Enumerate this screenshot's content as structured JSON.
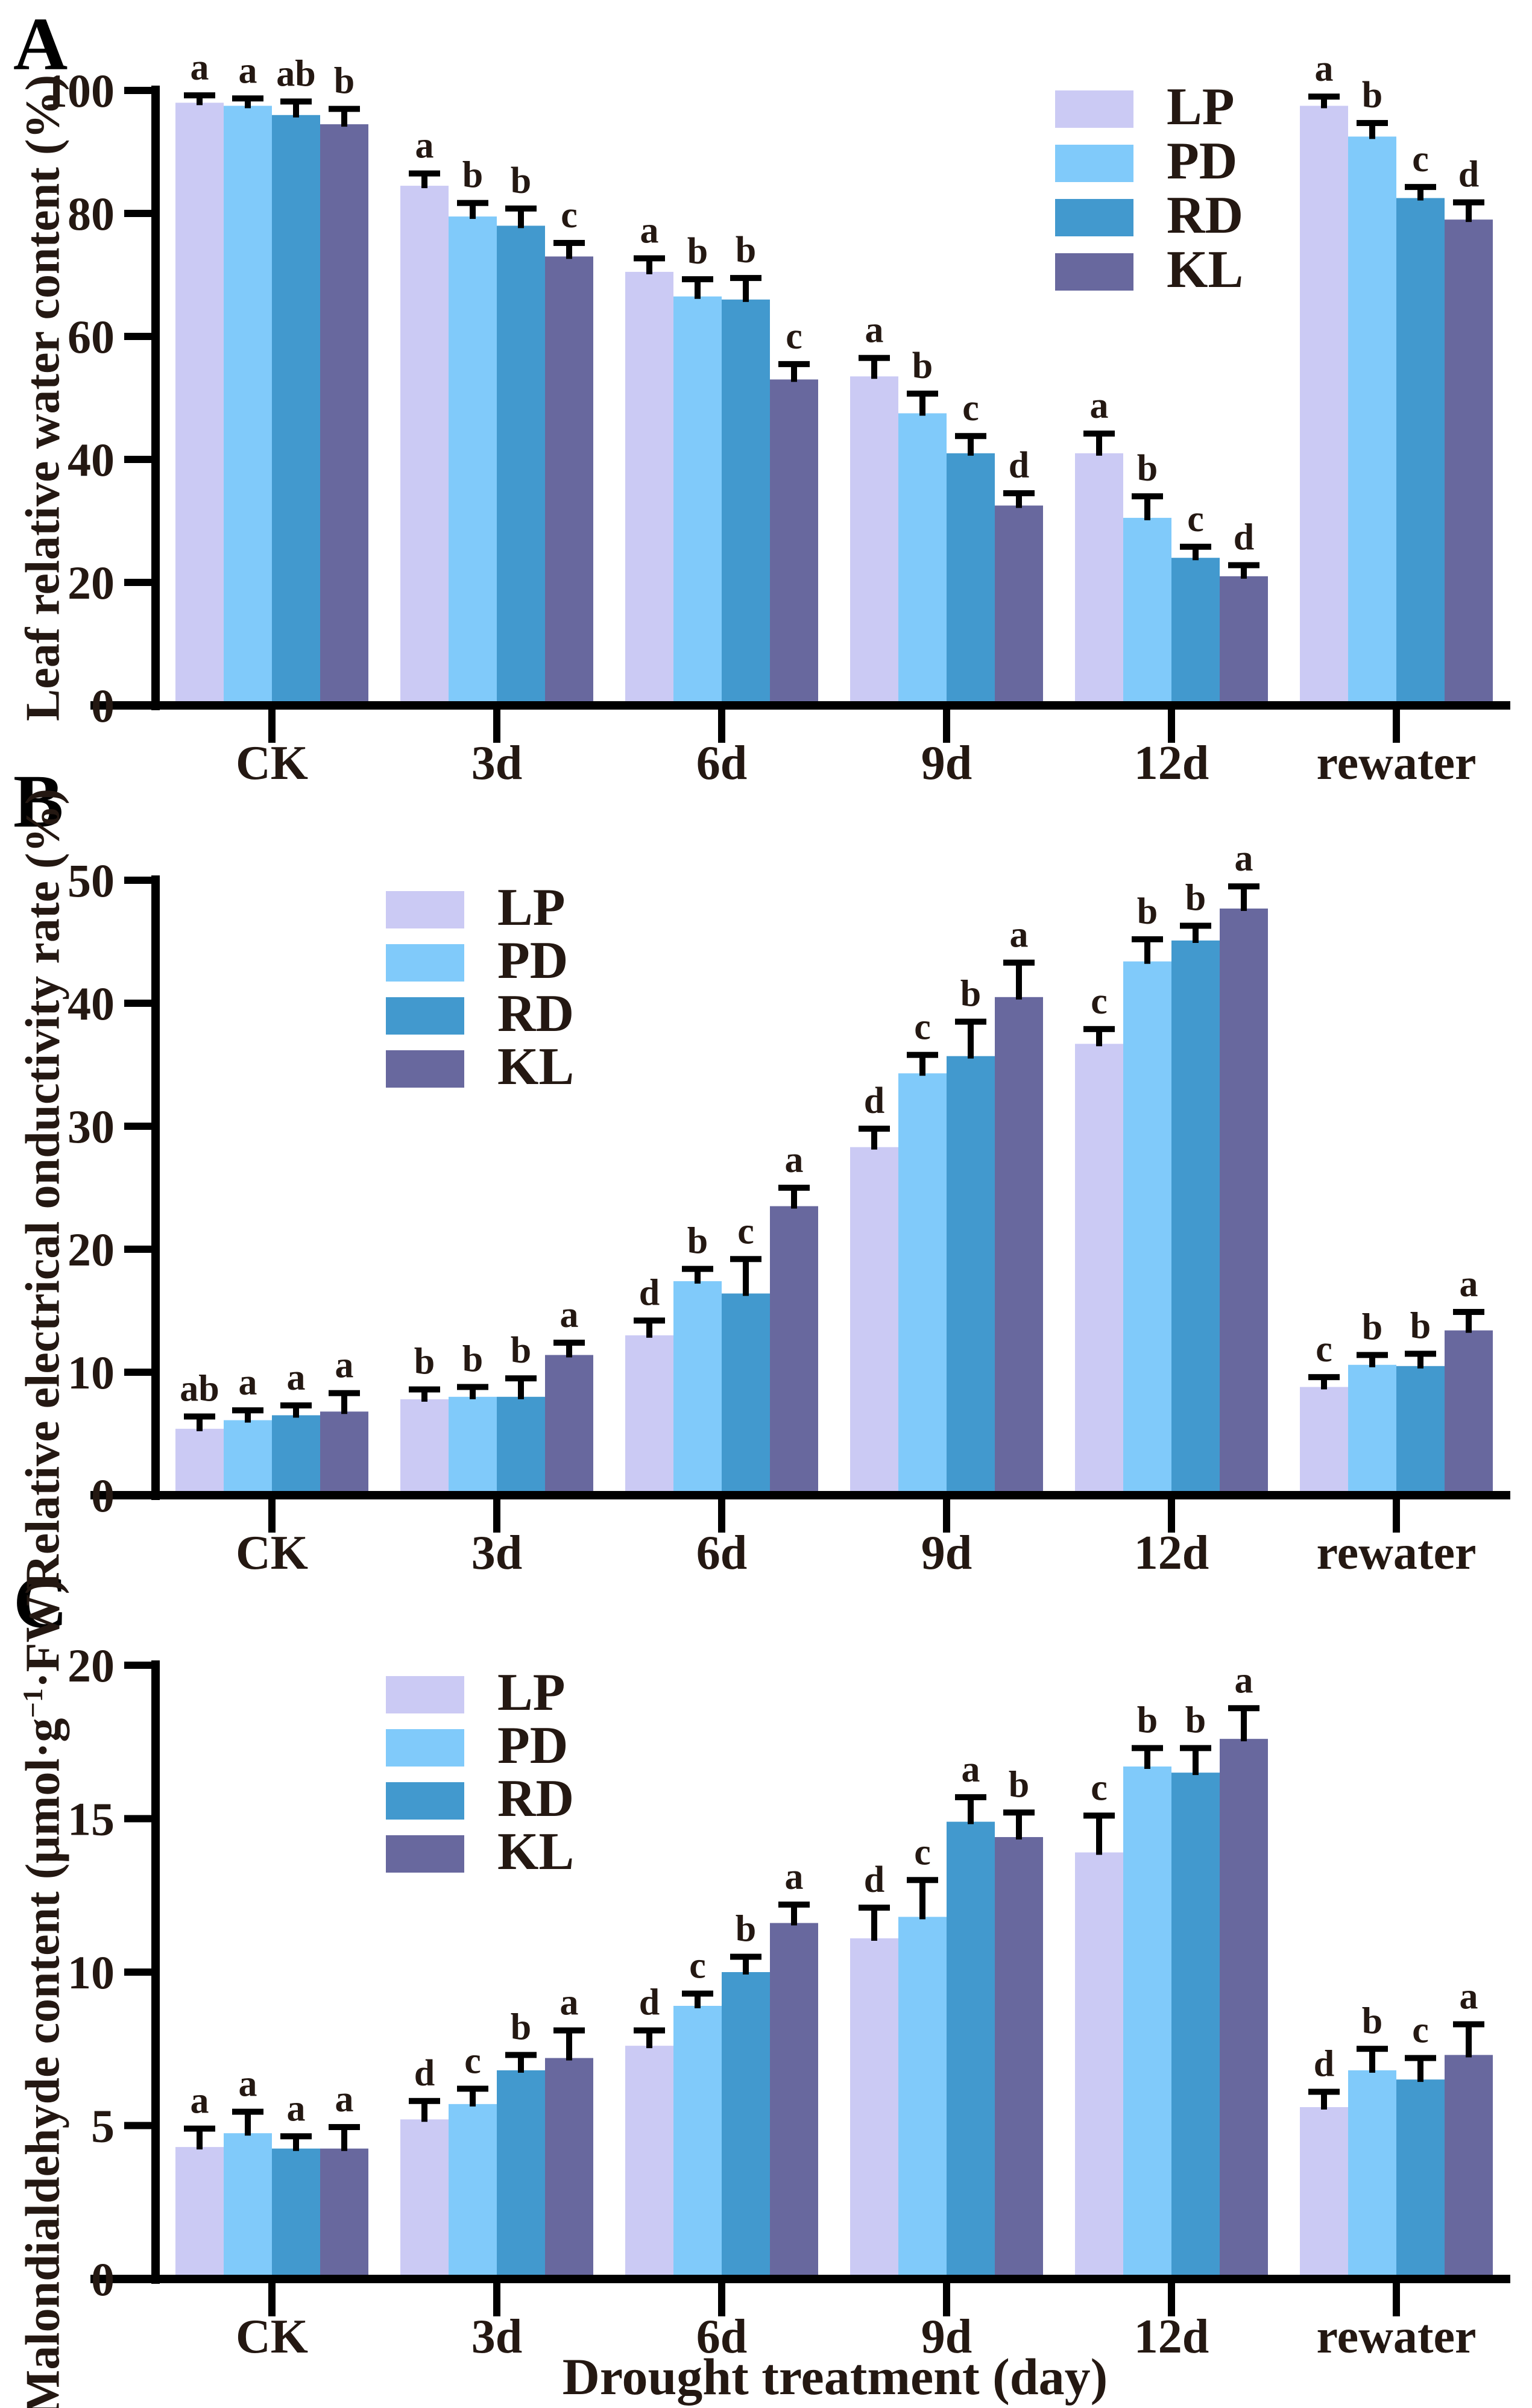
{
  "figure": {
    "xlabel": "Drought treatment (day)",
    "text_color": "#241812",
    "axis_color": "#000000",
    "background": "#ffffff",
    "colors": {
      "LP": "#cbcaf4",
      "PD": "#80cafa",
      "RD": "#4299ce",
      "KL": "#68689e"
    }
  },
  "chart_data": [
    {
      "panel_label": "A",
      "type": "bar",
      "ylabel": "Leaf relative water content (%)",
      "ylim": [
        0,
        100
      ],
      "yticks": [
        0,
        20,
        40,
        60,
        80,
        100
      ],
      "grid": false,
      "legend_position": "top-right",
      "categories": [
        "CK",
        "3d",
        "6d",
        "9d",
        "12d",
        "rewater"
      ],
      "series": [
        {
          "name": "LP",
          "values": [
            98,
            84.5,
            70.5,
            53.5,
            41,
            97.5
          ],
          "errors": [
            1.2,
            2.0,
            2.2,
            3.0,
            3.2,
            1.5
          ],
          "letters": [
            "a",
            "a",
            "a",
            "a",
            "a",
            "a"
          ]
        },
        {
          "name": "PD",
          "values": [
            97.5,
            79.5,
            66.5,
            47.5,
            30.5,
            92.5
          ],
          "errors": [
            1.2,
            2.2,
            2.8,
            3.2,
            3.5,
            2.2
          ],
          "letters": [
            "a",
            "b",
            "b",
            "b",
            "b",
            "b"
          ]
        },
        {
          "name": "RD",
          "values": [
            96,
            78,
            66,
            41,
            24,
            82.5
          ],
          "errors": [
            2.2,
            2.8,
            3.5,
            2.8,
            1.8,
            1.8
          ],
          "letters": [
            "ab",
            "b",
            "b",
            "c",
            "c",
            "c"
          ]
        },
        {
          "name": "KL",
          "values": [
            94.5,
            73,
            53,
            32.5,
            21,
            79
          ],
          "errors": [
            2.5,
            2.2,
            2.5,
            2.0,
            1.8,
            2.8
          ],
          "letters": [
            "b",
            "c",
            "c",
            "d",
            "d",
            "d"
          ]
        }
      ]
    },
    {
      "panel_label": "B",
      "type": "bar",
      "ylabel": "Relative electrical onductivity rate (%)",
      "ylim": [
        0,
        50
      ],
      "yticks": [
        0,
        10,
        20,
        30,
        40,
        50
      ],
      "grid": false,
      "legend_position": "top-left",
      "categories": [
        "CK",
        "3d",
        "6d",
        "9d",
        "12d",
        "rewater"
      ],
      "series": [
        {
          "name": "LP",
          "values": [
            5.4,
            7.8,
            13.0,
            28.3,
            36.7,
            8.8
          ],
          "errors": [
            1.0,
            0.8,
            1.2,
            1.5,
            1.2,
            0.8
          ],
          "letters": [
            "ab",
            "b",
            "d",
            "d",
            "c",
            "c"
          ]
        },
        {
          "name": "PD",
          "values": [
            6.1,
            8.0,
            17.4,
            34.3,
            43.4,
            10.6
          ],
          "errors": [
            0.8,
            0.8,
            1.0,
            1.5,
            1.8,
            0.8
          ],
          "letters": [
            "a",
            "b",
            "b",
            "c",
            "b",
            "b"
          ]
        },
        {
          "name": "RD",
          "values": [
            6.5,
            8.0,
            16.4,
            35.7,
            45.1,
            10.5
          ],
          "errors": [
            0.8,
            1.5,
            2.8,
            2.8,
            1.2,
            1.0
          ],
          "letters": [
            "a",
            "b",
            "c",
            "b",
            "b",
            "b"
          ]
        },
        {
          "name": "KL",
          "values": [
            6.8,
            11.4,
            23.5,
            40.5,
            47.7,
            13.4
          ],
          "errors": [
            1.5,
            1.0,
            1.5,
            2.8,
            1.8,
            1.5
          ],
          "letters": [
            "a",
            "a",
            "a",
            "a",
            "a",
            "a"
          ]
        }
      ]
    },
    {
      "panel_label": "C",
      "type": "bar",
      "ylabel": "Malondialdehyde content (μmol·g−1·FW)",
      "ylabel_parts": {
        "pre": "Malondialdehyde content (μmol·g",
        "sup": "−1",
        "post": "·FW)"
      },
      "ylim": [
        0,
        20
      ],
      "yticks": [
        0,
        5,
        10,
        15,
        20
      ],
      "grid": false,
      "legend_position": "top-left",
      "categories": [
        "CK",
        "3d",
        "6d",
        "9d",
        "12d",
        "rewater"
      ],
      "series": [
        {
          "name": "LP",
          "values": [
            4.3,
            5.2,
            7.6,
            11.1,
            13.9,
            5.6
          ],
          "errors": [
            0.6,
            0.6,
            0.5,
            1.0,
            1.2,
            0.5
          ],
          "letters": [
            "a",
            "d",
            "d",
            "d",
            "c",
            "d"
          ]
        },
        {
          "name": "PD",
          "values": [
            4.75,
            5.7,
            8.9,
            11.8,
            16.7,
            6.8
          ],
          "errors": [
            0.7,
            0.5,
            0.4,
            1.2,
            0.6,
            0.7
          ],
          "letters": [
            "a",
            "c",
            "c",
            "c",
            "b",
            "b"
          ]
        },
        {
          "name": "RD",
          "values": [
            4.25,
            6.8,
            10.0,
            14.9,
            16.5,
            6.5
          ],
          "errors": [
            0.4,
            0.5,
            0.5,
            0.8,
            0.8,
            0.7
          ],
          "letters": [
            "a",
            "b",
            "b",
            "a",
            "b",
            "c"
          ]
        },
        {
          "name": "KL",
          "values": [
            4.25,
            7.2,
            11.6,
            14.4,
            17.6,
            7.3
          ],
          "errors": [
            0.7,
            0.9,
            0.6,
            0.8,
            1.0,
            1.0
          ],
          "letters": [
            "a",
            "a",
            "a",
            "b",
            "a",
            "a"
          ]
        }
      ]
    }
  ]
}
